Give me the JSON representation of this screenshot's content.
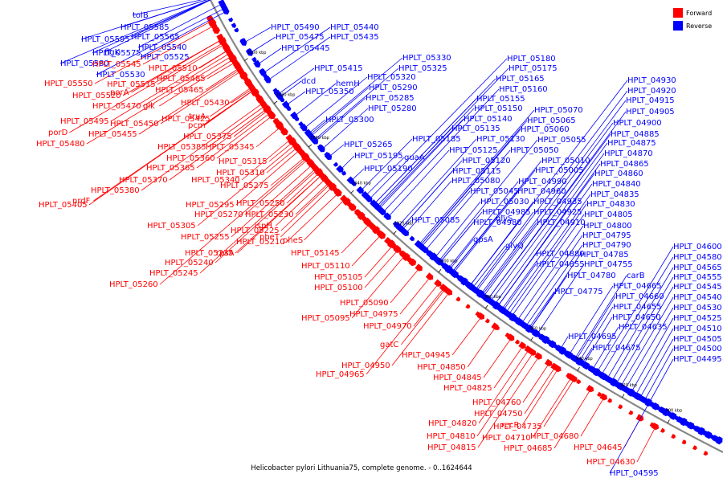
{
  "legend": {
    "forward": {
      "label": "Forward",
      "color": "#ff0000"
    },
    "reverse": {
      "label": "Reverse",
      "color": "#0000ff"
    }
  },
  "caption": "Helicobacter pylori Lithuania75, complete genome. - 0..1624644",
  "ticks": [
    "1100 kbp",
    "1080 kbp",
    "1060 kbp",
    "1040 kbp",
    "1020 kbp",
    "1000 kbp",
    "980 kbp",
    "960 kbp",
    "940 kbp",
    "920 kbp",
    "900 kbp"
  ],
  "genes": [
    {
      "t": "tolB",
      "d": "r"
    },
    {
      "t": "HPLT_05585",
      "d": "r"
    },
    {
      "t": "HPLT_05595",
      "d": "r"
    },
    {
      "t": "HPLT_05565",
      "d": "r"
    },
    {
      "t": "HPLT_05540",
      "d": "r"
    },
    {
      "t": "HPLT_05575",
      "d": "r"
    },
    {
      "t": "flgK",
      "d": "r"
    },
    {
      "t": "HPLT_05525",
      "d": "r"
    },
    {
      "t": "HPLT_05580",
      "d": "r"
    },
    {
      "t": "HPLT_05545",
      "d": "f"
    },
    {
      "t": "HPLT_05530",
      "d": "r"
    },
    {
      "t": "HPLT_05510",
      "d": "f"
    },
    {
      "t": "HPLT_05550",
      "d": "f"
    },
    {
      "t": "HPLT_05515",
      "d": "f"
    },
    {
      "t": "HPLT_05485",
      "d": "f"
    },
    {
      "t": "HPLT_05520",
      "d": "f"
    },
    {
      "t": "porA",
      "d": "f"
    },
    {
      "t": "HPLT_05465",
      "d": "f"
    },
    {
      "t": "HPLT_05470",
      "d": "f"
    },
    {
      "t": "glk",
      "d": "f"
    },
    {
      "t": "HPLT_05430",
      "d": "f"
    },
    {
      "t": "truA",
      "d": "f"
    },
    {
      "t": "HPLT_05495",
      "d": "f"
    },
    {
      "t": "HPLT_05450",
      "d": "f"
    },
    {
      "t": "HPLT_05425",
      "d": "f"
    },
    {
      "t": "pcm",
      "d": "f"
    },
    {
      "t": "porD",
      "d": "f"
    },
    {
      "t": "HPLT_05455",
      "d": "f"
    },
    {
      "t": "HPLT_05375",
      "d": "f"
    },
    {
      "t": "HPLT_05480",
      "d": "f"
    },
    {
      "t": "HPLT_05385",
      "d": "f"
    },
    {
      "t": "HPLT_05345",
      "d": "f"
    },
    {
      "t": "HPLT_05360",
      "d": "f"
    },
    {
      "t": "HPLT_05315",
      "d": "f"
    },
    {
      "t": "HPLT_05365",
      "d": "f"
    },
    {
      "t": "HPLT_05310",
      "d": "f"
    },
    {
      "t": "HPLT_05370",
      "d": "f"
    },
    {
      "t": "HPLT_05340",
      "d": "f"
    },
    {
      "t": "HPLT_05380",
      "d": "f"
    },
    {
      "t": "HPLT_05275",
      "d": "f"
    },
    {
      "t": "nrdF",
      "d": "f"
    },
    {
      "t": "HPLT_05405",
      "d": "f"
    },
    {
      "t": "HPLT_05295",
      "d": "f"
    },
    {
      "t": "HPLT_05250",
      "d": "f"
    },
    {
      "t": "HPLT_05270",
      "d": "f"
    },
    {
      "t": "HPLT_05230",
      "d": "f"
    },
    {
      "t": "HPLT_05305",
      "d": "f"
    },
    {
      "t": "ispH",
      "d": "f"
    },
    {
      "t": "HPLT_05225",
      "d": "f"
    },
    {
      "t": "HPLT_05255",
      "d": "f"
    },
    {
      "t": "HPLT_05210",
      "d": "f"
    },
    {
      "t": "pheT",
      "d": "f"
    },
    {
      "t": "pheS",
      "d": "f"
    },
    {
      "t": "HPLT_05235",
      "d": "f"
    },
    {
      "t": "rpsA",
      "d": "f"
    },
    {
      "t": "HPLT_05145",
      "d": "f"
    },
    {
      "t": "HPLT_05240",
      "d": "f"
    },
    {
      "t": "HPLT_05110",
      "d": "f"
    },
    {
      "t": "HPLT_05245",
      "d": "f"
    },
    {
      "t": "HPLT_05105",
      "d": "f"
    },
    {
      "t": "HPLT_05260",
      "d": "f"
    },
    {
      "t": "HPLT_05100",
      "d": "f"
    },
    {
      "t": "HPLT_05090",
      "d": "f"
    },
    {
      "t": "HPLT_04975",
      "d": "f"
    },
    {
      "t": "HPLT_05095",
      "d": "f"
    },
    {
      "t": "HPLT_04970",
      "d": "f"
    },
    {
      "t": "gatC",
      "d": "f"
    },
    {
      "t": "HPLT_04945",
      "d": "f"
    },
    {
      "t": "HPLT_04950",
      "d": "f"
    },
    {
      "t": "HPLT_04850",
      "d": "f"
    },
    {
      "t": "HPLT_04965",
      "d": "f"
    },
    {
      "t": "HPLT_04845",
      "d": "f"
    },
    {
      "t": "HPLT_04825",
      "d": "f"
    },
    {
      "t": "HPLT_04760",
      "d": "f"
    },
    {
      "t": "HPLT_04750",
      "d": "f"
    },
    {
      "t": "HPLT_04820",
      "d": "f"
    },
    {
      "t": "HPLT_04735",
      "d": "f"
    },
    {
      "t": "recR",
      "d": "f"
    },
    {
      "t": "HPLT_04810",
      "d": "f"
    },
    {
      "t": "HPLT_04710",
      "d": "f"
    },
    {
      "t": "HPLT_04680",
      "d": "f"
    },
    {
      "t": "HPLT_04815",
      "d": "f"
    },
    {
      "t": "HPLT_04685",
      "d": "f"
    },
    {
      "t": "HPLT_04645",
      "d": "f"
    },
    {
      "t": "HPLT_04630",
      "d": "f"
    },
    {
      "t": "HPLT_04595",
      "d": "r"
    },
    {
      "t": "HPLT_05490",
      "d": "r"
    },
    {
      "t": "HPLT_05440",
      "d": "r"
    },
    {
      "t": "HPLT_05475",
      "d": "r"
    },
    {
      "t": "HPLT_05435",
      "d": "r"
    },
    {
      "t": "HPLT_05445",
      "d": "r"
    },
    {
      "t": "HPLT_05330",
      "d": "r"
    },
    {
      "t": "HPLT_05325",
      "d": "r"
    },
    {
      "t": "HPLT_05415",
      "d": "r"
    },
    {
      "t": "hemH",
      "d": "r"
    },
    {
      "t": "dcd",
      "d": "r"
    },
    {
      "t": "HPLT_05320",
      "d": "r"
    },
    {
      "t": "HPLT_05350",
      "d": "r"
    },
    {
      "t": "HPLT_05290",
      "d": "r"
    },
    {
      "t": "HPLT_05285",
      "d": "r"
    },
    {
      "t": "HPLT_05280",
      "d": "r"
    },
    {
      "t": "HPLT_05300",
      "d": "r"
    },
    {
      "t": "HPLT_05265",
      "d": "r"
    },
    {
      "t": "HPLT_05195",
      "d": "r"
    },
    {
      "t": "guaA",
      "d": "r"
    },
    {
      "t": "HPLT_05190",
      "d": "r"
    },
    {
      "t": "HPLT_05085",
      "d": "r"
    },
    {
      "t": "HPLT_05180",
      "d": "r"
    },
    {
      "t": "HPLT_05175",
      "d": "r"
    },
    {
      "t": "HPLT_05165",
      "d": "r"
    },
    {
      "t": "HPLT_05160",
      "d": "r"
    },
    {
      "t": "HPLT_05155",
      "d": "r"
    },
    {
      "t": "HPLT_05150",
      "d": "r"
    },
    {
      "t": "HPLT_05070",
      "d": "r"
    },
    {
      "t": "HPLT_05140",
      "d": "r"
    },
    {
      "t": "HPLT_05065",
      "d": "r"
    },
    {
      "t": "HPLT_05135",
      "d": "r"
    },
    {
      "t": "HPLT_05060",
      "d": "r"
    },
    {
      "t": "HPLT_05185",
      "d": "r"
    },
    {
      "t": "HPLT_05130",
      "d": "r"
    },
    {
      "t": "HPLT_05055",
      "d": "r"
    },
    {
      "t": "HPLT_05125",
      "d": "r"
    },
    {
      "t": "HPLT_05050",
      "d": "r"
    },
    {
      "t": "HPLT_05120",
      "d": "r"
    },
    {
      "t": "HPLT_05010",
      "d": "r"
    },
    {
      "t": "HPLT_05115",
      "d": "r"
    },
    {
      "t": "HPLT_05005",
      "d": "r"
    },
    {
      "t": "HPLT_05080",
      "d": "r"
    },
    {
      "t": "HPLT_04990",
      "d": "r"
    },
    {
      "t": "HPLT_05045",
      "d": "r"
    },
    {
      "t": "HPLT_04960",
      "d": "r"
    },
    {
      "t": "HPLT_05030",
      "d": "r"
    },
    {
      "t": "HPLT_04935",
      "d": "r"
    },
    {
      "t": "HPLT_04985",
      "d": "r"
    },
    {
      "t": "HPLT_04925",
      "d": "r"
    },
    {
      "t": "HPLT_04980",
      "d": "r"
    },
    {
      "t": "HPLT_04910",
      "d": "r"
    },
    {
      "t": "gpsA",
      "d": "r"
    },
    {
      "t": "glyS",
      "d": "r"
    },
    {
      "t": "glyQ",
      "d": "r"
    },
    {
      "t": "HPLT_04880",
      "d": "r"
    },
    {
      "t": "HPLT_04855",
      "d": "r"
    },
    {
      "t": "HPLT_04780",
      "d": "r"
    },
    {
      "t": "HPLT_04775",
      "d": "r"
    },
    {
      "t": "HPLT_04930",
      "d": "r"
    },
    {
      "t": "HPLT_04920",
      "d": "r"
    },
    {
      "t": "HPLT_04915",
      "d": "r"
    },
    {
      "t": "HPLT_04905",
      "d": "r"
    },
    {
      "t": "HPLT_04900",
      "d": "r"
    },
    {
      "t": "HPLT_04885",
      "d": "r"
    },
    {
      "t": "HPLT_04875",
      "d": "r"
    },
    {
      "t": "HPLT_04870",
      "d": "r"
    },
    {
      "t": "HPLT_04865",
      "d": "r"
    },
    {
      "t": "HPLT_04860",
      "d": "r"
    },
    {
      "t": "HPLT_04840",
      "d": "r"
    },
    {
      "t": "HPLT_04835",
      "d": "r"
    },
    {
      "t": "HPLT_04830",
      "d": "r"
    },
    {
      "t": "HPLT_04805",
      "d": "r"
    },
    {
      "t": "HPLT_04800",
      "d": "r"
    },
    {
      "t": "HPLT_04795",
      "d": "r"
    },
    {
      "t": "HPLT_04790",
      "d": "r"
    },
    {
      "t": "HPLT_04785",
      "d": "r"
    },
    {
      "t": "HPLT_04755",
      "d": "r"
    },
    {
      "t": "carB",
      "d": "r"
    },
    {
      "t": "HPLT_04665",
      "d": "r"
    },
    {
      "t": "HPLT_04660",
      "d": "r"
    },
    {
      "t": "HPLT_04655",
      "d": "r"
    },
    {
      "t": "HPLT_04650",
      "d": "r"
    },
    {
      "t": "HPLT_04635",
      "d": "r"
    },
    {
      "t": "HPLT_04695",
      "d": "r"
    },
    {
      "t": "HPLT_04675",
      "d": "r"
    },
    {
      "t": "HPLT_04600",
      "d": "r"
    },
    {
      "t": "HPLT_04580",
      "d": "r"
    },
    {
      "t": "HPLT_04565",
      "d": "r"
    },
    {
      "t": "HPLT_04555",
      "d": "r"
    },
    {
      "t": "HPLT_04545",
      "d": "r"
    },
    {
      "t": "HPLT_04540",
      "d": "r"
    },
    {
      "t": "HPLT_04530",
      "d": "r"
    },
    {
      "t": "HPLT_04525",
      "d": "r"
    },
    {
      "t": "HPLT_04510",
      "d": "r"
    },
    {
      "t": "HPLT_04505",
      "d": "r"
    },
    {
      "t": "HPLT_04500",
      "d": "r"
    },
    {
      "t": "HPLT_04495",
      "d": "r"
    }
  ]
}
